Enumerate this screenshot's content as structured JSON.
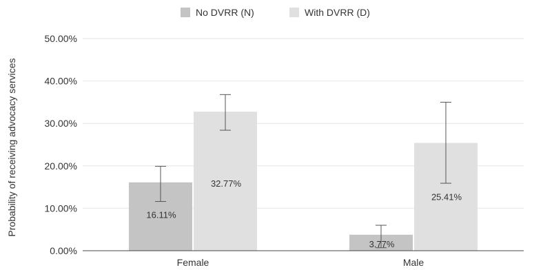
{
  "chart_data": {
    "type": "bar",
    "ylabel": "Probability of receiving advocacy services",
    "xlabel": "",
    "categories": [
      "Female",
      "Male"
    ],
    "ylim": [
      0,
      50
    ],
    "yticks": [
      0,
      10,
      20,
      30,
      40,
      50
    ],
    "ytick_labels": [
      "0.00%",
      "10.00%",
      "20.00%",
      "30.00%",
      "40.00%",
      "50.00%"
    ],
    "grid": true,
    "legend_position": "top-center",
    "series": [
      {
        "name": "No DVRR (N)",
        "color": "#c4c4c4",
        "values": [
          16.11,
          3.77
        ],
        "labels": [
          "16.11%",
          "3.77%"
        ],
        "error_low": [
          11.6,
          0.7
        ],
        "error_high": [
          19.9,
          6.0
        ]
      },
      {
        "name": "With DVRR (D)",
        "color": "#e0e0e0",
        "values": [
          32.77,
          25.41
        ],
        "labels": [
          "32.77%",
          "25.41%"
        ],
        "error_low": [
          28.4,
          15.9
        ],
        "error_high": [
          36.8,
          35.0
        ]
      }
    ]
  }
}
